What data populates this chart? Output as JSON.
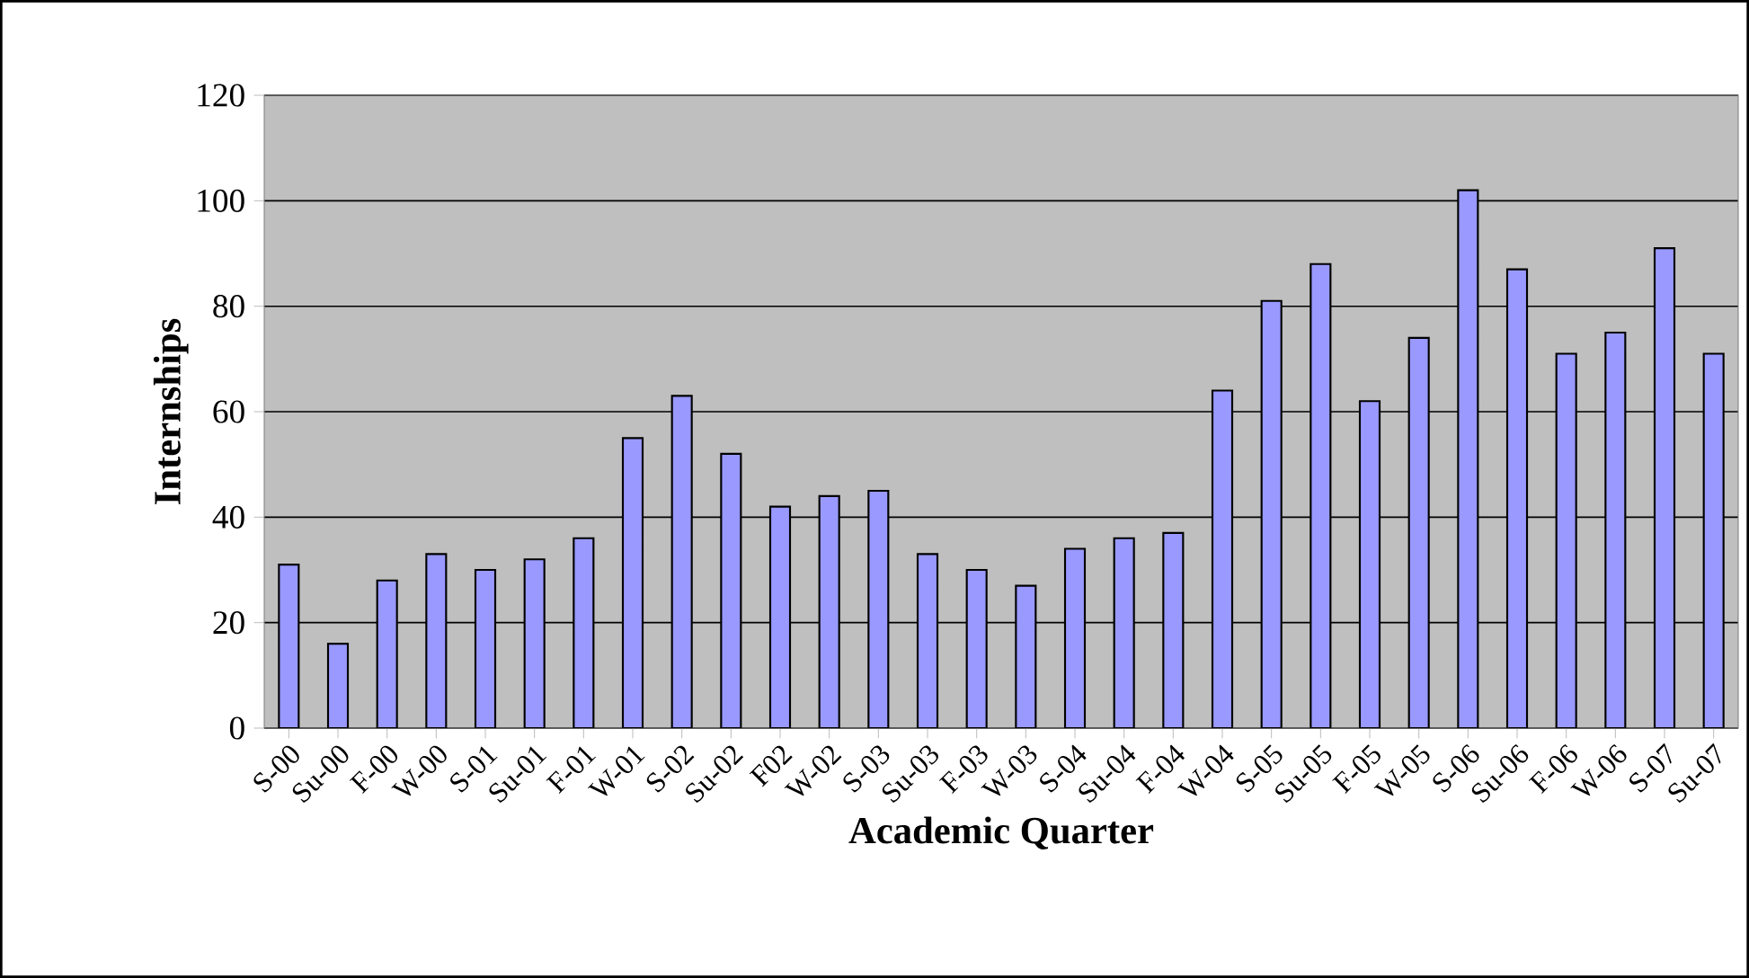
{
  "chart_data": {
    "type": "bar",
    "xlabel": "Academic Quarter",
    "ylabel": "Internships",
    "categories": [
      "S-00",
      "Su-00",
      "F-00",
      "W-00",
      "S-01",
      "Su-01",
      "F-01",
      "W-01",
      "S-02",
      "Su-02",
      "F02",
      "W-02",
      "S-03",
      "Su-03",
      "F-03",
      "W-03",
      "S-04",
      "Su-04",
      "F-04",
      "W-04",
      "S-05",
      "Su-05",
      "F-05",
      "W-05",
      "S-06",
      "Su-06",
      "F-06",
      "W-06",
      "S-07",
      "Su-07"
    ],
    "values": [
      31,
      16,
      28,
      33,
      30,
      32,
      36,
      55,
      63,
      52,
      42,
      44,
      45,
      33,
      30,
      27,
      34,
      36,
      37,
      64,
      81,
      88,
      62,
      74,
      102,
      87,
      71,
      75,
      91,
      71
    ],
    "color": "#9999ff",
    "ylim": [
      0,
      120
    ],
    "yticks": [
      0,
      20,
      40,
      60,
      80,
      100,
      120
    ],
    "grid": "y"
  }
}
